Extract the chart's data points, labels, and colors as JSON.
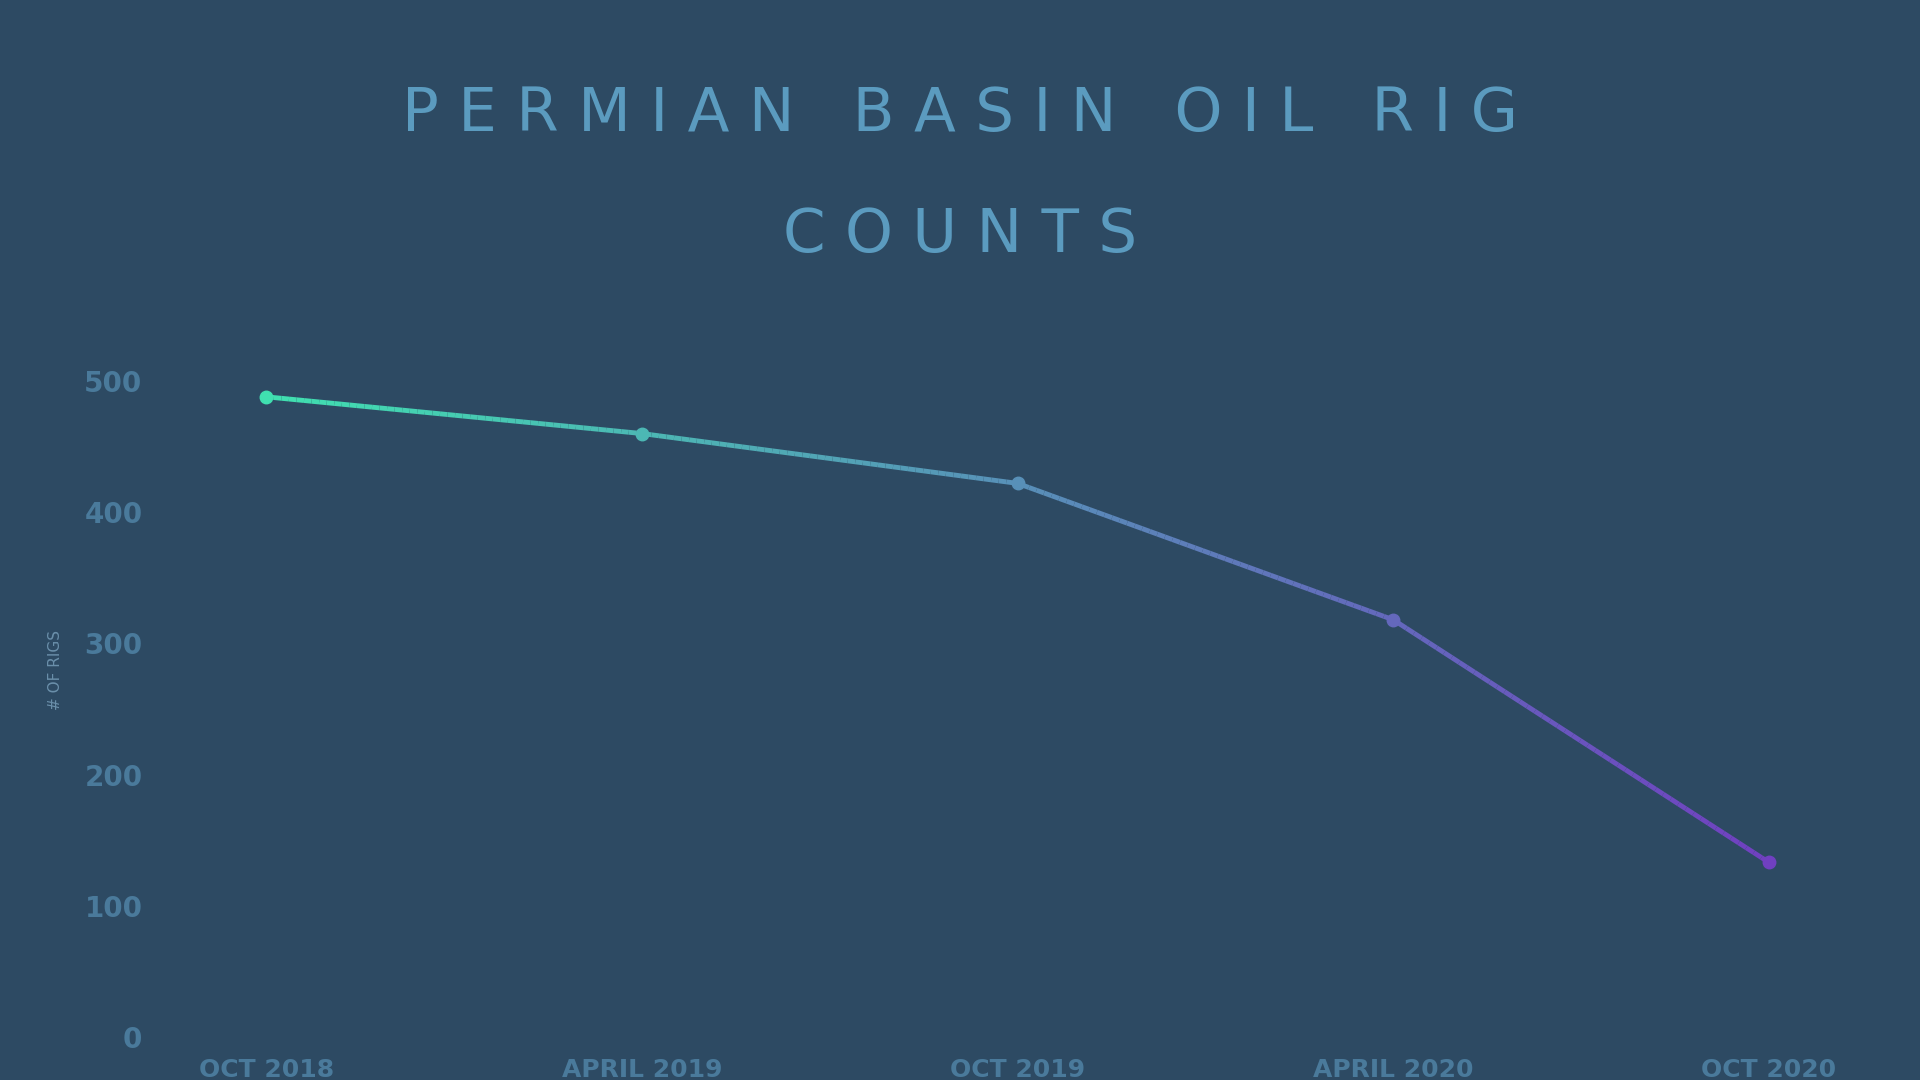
{
  "title_line1": "P E R M I A N   B A S I N   O I L   R I G",
  "title_line2": "C O U N T S",
  "title_color": "#5b9bbf",
  "title_fontsize": 44,
  "x_labels": [
    "OCT 2018",
    "APRIL 2019",
    "OCT 2019",
    "APRIL 2020",
    "OCT 2020"
  ],
  "y_values": [
    488,
    460,
    422,
    318,
    133
  ],
  "x_positions": [
    0,
    1,
    2,
    3,
    4
  ],
  "ylabel": "# OF RIGS",
  "ylabel_color": "#6a8faa",
  "ylabel_fontsize": 11,
  "ylim": [
    0,
    560
  ],
  "yticks": [
    0,
    100,
    200,
    300,
    400,
    500
  ],
  "plot_bg_color": "#2d4a63",
  "title_bg_color": "#e4e7ea",
  "tick_color": "#4a7a9b",
  "tick_fontsize": 18,
  "line_color_start": "#40e0b0",
  "line_color_end": "#7040c0",
  "line_width": 3.5,
  "marker_size": 9,
  "fig_width": 19.2,
  "fig_height": 10.8
}
